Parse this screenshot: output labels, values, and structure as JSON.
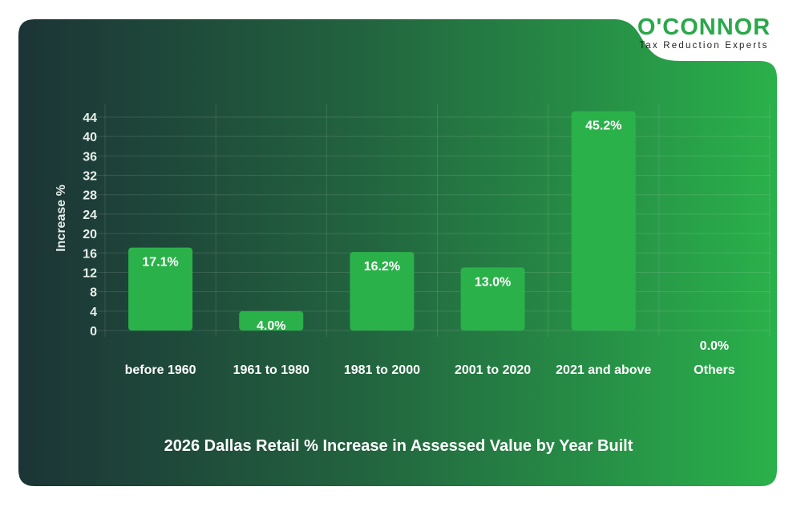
{
  "logo": {
    "name": "O'CONNOR",
    "tagline": "Tax Reduction Experts"
  },
  "colors": {
    "bar": "#2bb14a",
    "background_start": "#1c3436",
    "background_end": "#2ab14b",
    "text": "#ffffff"
  },
  "chart_data": {
    "type": "bar",
    "title": "2026 Dallas Retail % Increase in Assessed Value by Year Built",
    "xlabel": "",
    "ylabel": "Increase %",
    "categories": [
      "before 1960",
      "1961 to 1980",
      "1981 to 2000",
      "2001 to 2020",
      "2021 and above",
      "Others"
    ],
    "values": [
      17.1,
      4.0,
      16.2,
      13.0,
      45.2,
      0.0
    ],
    "data_labels": [
      "17.1%",
      "4.0%",
      "16.2%",
      "13.0%",
      "45.2%",
      "0.0%"
    ],
    "yticks": [
      0,
      4,
      8,
      12,
      16,
      20,
      24,
      28,
      32,
      36,
      40,
      44
    ],
    "ylim": [
      0,
      44
    ],
    "grid": true,
    "legend": "none"
  }
}
